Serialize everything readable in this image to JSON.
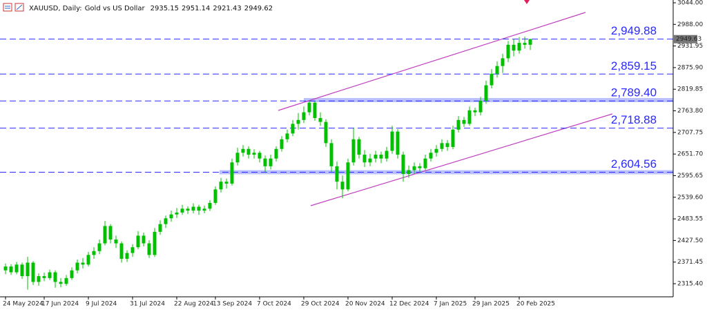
{
  "chart_data": {
    "type": "candlestick",
    "symbol": "XAUUSD, Daily:",
    "description": "Gold vs US Dollar",
    "color": "#00c000",
    "ylim": [
      2281.4,
      3051.2
    ],
    "yticks": [
      {
        "value": 3044,
        "label": "3044.00"
      },
      {
        "value": 2988,
        "label": "2988.00"
      },
      {
        "value": 2931.95,
        "label": "2931.95"
      },
      {
        "value": 2875.9,
        "label": "2875.90"
      },
      {
        "value": 2819.85,
        "label": "2819.85"
      },
      {
        "value": 2763.8,
        "label": "2763.80"
      },
      {
        "value": 2707.75,
        "label": "2707.75"
      },
      {
        "value": 2651.7,
        "label": "2651.70"
      },
      {
        "value": 2595.65,
        "label": "2595.65"
      },
      {
        "value": 2539.6,
        "label": "2539.60"
      },
      {
        "value": 2483.55,
        "label": "2483.55"
      },
      {
        "value": 2427.5,
        "label": "2427.50"
      },
      {
        "value": 2371.45,
        "label": "2371.45"
      },
      {
        "value": 2315.4,
        "label": "2315.40"
      }
    ],
    "last_price": 2949.63,
    "levels": [
      {
        "value": 2949.88,
        "label": "2,949.88"
      },
      {
        "value": 2859.15,
        "label": "2,859.15"
      },
      {
        "value": 2789.4,
        "label": "2,789.40"
      },
      {
        "value": 2718.88,
        "label": "2,718.88"
      },
      {
        "value": 2604.56,
        "label": "2,604.56"
      }
    ],
    "level_color": "#2828ff",
    "categories": [
      "24 May 2024",
      null,
      null,
      null,
      null,
      null,
      null,
      "17 Jun 2024",
      null,
      null,
      null,
      null,
      null,
      null,
      null,
      "9 Jul 2024",
      null,
      null,
      null,
      null,
      null,
      null,
      null,
      "31 Jul 2024",
      null,
      null,
      null,
      null,
      null,
      null,
      null,
      "22 Aug 2024",
      null,
      null,
      null,
      null,
      null,
      null,
      "13 Sep 2024",
      null,
      null,
      null,
      null,
      null,
      null,
      null,
      "7 Oct 2024",
      null,
      null,
      null,
      null,
      null,
      null,
      null,
      "29 Oct 2024",
      null,
      null,
      null,
      null,
      null,
      null,
      null,
      "20 Nov 2024",
      null,
      null,
      null,
      null,
      null,
      null,
      null,
      "12 Dec 2024",
      null,
      null,
      null,
      null,
      null,
      null,
      null,
      "7 Jan 2025",
      null,
      null,
      null,
      null,
      null,
      null,
      "29 Jan 2025",
      null,
      null,
      null,
      null,
      null,
      null,
      null,
      "20 Feb 2025",
      null,
      null
    ],
    "candles": [
      [
        2350,
        2368,
        2340,
        2360
      ],
      [
        2360,
        2366,
        2338,
        2345
      ],
      [
        2345,
        2372,
        2340,
        2365
      ],
      [
        2365,
        2370,
        2328,
        2335
      ],
      [
        2335,
        2385,
        2300,
        2370
      ],
      [
        2370,
        2374,
        2312,
        2320
      ],
      [
        2320,
        2342,
        2310,
        2335
      ],
      [
        2335,
        2344,
        2322,
        2330
      ],
      [
        2330,
        2352,
        2325,
        2345
      ],
      [
        2345,
        2350,
        2305,
        2320
      ],
      [
        2320,
        2330,
        2306,
        2315
      ],
      [
        2315,
        2338,
        2310,
        2330
      ],
      [
        2330,
        2358,
        2325,
        2350
      ],
      [
        2350,
        2378,
        2342,
        2370
      ],
      [
        2370,
        2382,
        2355,
        2365
      ],
      [
        2365,
        2398,
        2360,
        2390
      ],
      [
        2390,
        2410,
        2380,
        2400
      ],
      [
        2400,
        2430,
        2392,
        2420
      ],
      [
        2420,
        2478,
        2415,
        2465
      ],
      [
        2465,
        2470,
        2420,
        2430
      ],
      [
        2430,
        2440,
        2408,
        2420
      ],
      [
        2420,
        2425,
        2370,
        2380
      ],
      [
        2380,
        2402,
        2372,
        2395
      ],
      [
        2395,
        2418,
        2385,
        2410
      ],
      [
        2410,
        2452,
        2405,
        2440
      ],
      [
        2440,
        2448,
        2412,
        2420
      ],
      [
        2420,
        2428,
        2382,
        2390
      ],
      [
        2390,
        2460,
        2385,
        2450
      ],
      [
        2450,
        2480,
        2442,
        2470
      ],
      [
        2470,
        2492,
        2460,
        2485
      ],
      [
        2485,
        2505,
        2476,
        2495
      ],
      [
        2495,
        2512,
        2486,
        2500
      ],
      [
        2500,
        2520,
        2494,
        2510
      ],
      [
        2510,
        2516,
        2496,
        2505
      ],
      [
        2505,
        2524,
        2498,
        2515
      ],
      [
        2515,
        2520,
        2494,
        2505
      ],
      [
        2505,
        2518,
        2498,
        2510
      ],
      [
        2510,
        2532,
        2504,
        2525
      ],
      [
        2525,
        2568,
        2520,
        2560
      ],
      [
        2560,
        2590,
        2552,
        2580
      ],
      [
        2580,
        2588,
        2562,
        2575
      ],
      [
        2575,
        2640,
        2570,
        2630
      ],
      [
        2630,
        2668,
        2622,
        2655
      ],
      [
        2655,
        2675,
        2645,
        2665
      ],
      [
        2665,
        2672,
        2640,
        2650
      ],
      [
        2650,
        2664,
        2640,
        2655
      ],
      [
        2655,
        2660,
        2630,
        2640
      ],
      [
        2640,
        2648,
        2605,
        2620
      ],
      [
        2620,
        2650,
        2612,
        2640
      ],
      [
        2640,
        2672,
        2632,
        2665
      ],
      [
        2665,
        2698,
        2658,
        2690
      ],
      [
        2690,
        2715,
        2682,
        2705
      ],
      [
        2705,
        2740,
        2698,
        2730
      ],
      [
        2730,
        2758,
        2715,
        2740
      ],
      [
        2740,
        2775,
        2732,
        2760
      ],
      [
        2760,
        2790,
        2752,
        2785
      ],
      [
        2785,
        2788,
        2738,
        2745
      ],
      [
        2745,
        2760,
        2725,
        2735
      ],
      [
        2735,
        2742,
        2670,
        2680
      ],
      [
        2680,
        2690,
        2605,
        2620
      ],
      [
        2620,
        2632,
        2560,
        2580
      ],
      [
        2580,
        2596,
        2537,
        2560
      ],
      [
        2560,
        2640,
        2555,
        2630
      ],
      [
        2630,
        2720,
        2622,
        2690
      ],
      [
        2690,
        2696,
        2640,
        2650
      ],
      [
        2650,
        2662,
        2618,
        2630
      ],
      [
        2630,
        2652,
        2620,
        2640
      ],
      [
        2640,
        2660,
        2630,
        2650
      ],
      [
        2650,
        2658,
        2628,
        2640
      ],
      [
        2640,
        2670,
        2632,
        2660
      ],
      [
        2660,
        2725,
        2652,
        2710
      ],
      [
        2710,
        2716,
        2640,
        2650
      ],
      [
        2650,
        2658,
        2580,
        2600
      ],
      [
        2600,
        2622,
        2590,
        2610
      ],
      [
        2610,
        2630,
        2600,
        2620
      ],
      [
        2620,
        2628,
        2605,
        2615
      ],
      [
        2615,
        2650,
        2610,
        2640
      ],
      [
        2640,
        2665,
        2632,
        2655
      ],
      [
        2655,
        2675,
        2645,
        2665
      ],
      [
        2665,
        2690,
        2658,
        2680
      ],
      [
        2680,
        2688,
        2660,
        2670
      ],
      [
        2670,
        2725,
        2664,
        2715
      ],
      [
        2715,
        2750,
        2708,
        2740
      ],
      [
        2740,
        2748,
        2722,
        2730
      ],
      [
        2730,
        2775,
        2725,
        2765
      ],
      [
        2765,
        2772,
        2750,
        2760
      ],
      [
        2760,
        2800,
        2752,
        2790
      ],
      [
        2790,
        2842,
        2782,
        2830
      ],
      [
        2830,
        2872,
        2822,
        2860
      ],
      [
        2860,
        2892,
        2850,
        2880
      ],
      [
        2880,
        2912,
        2862,
        2900
      ],
      [
        2900,
        2945,
        2890,
        2935
      ],
      [
        2935,
        2950,
        2905,
        2920
      ],
      [
        2920,
        2955,
        2912,
        2940
      ],
      [
        2940,
        2956,
        2925,
        2935
      ],
      [
        2935.15,
        2951.14,
        2921.43,
        2949.62
      ]
    ]
  }
}
